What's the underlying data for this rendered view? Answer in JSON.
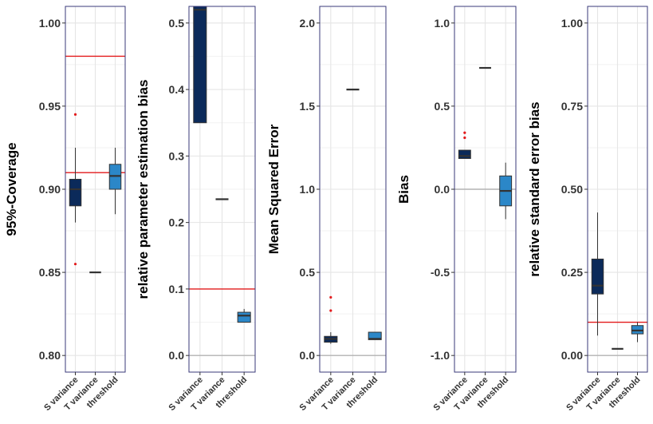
{
  "chart_data": [
    {
      "type": "boxplot",
      "ylabel": "95%-Coverage",
      "ylim": [
        0.79,
        1.01
      ],
      "yticks": [
        0.8,
        0.85,
        0.9,
        0.95,
        1.0
      ],
      "ytick_labels": [
        "0.80",
        "0.85",
        "0.90",
        "0.95",
        "1.00"
      ],
      "categories": [
        "S variance",
        "T variance",
        "threshold"
      ],
      "boxes": [
        {
          "q1": 0.89,
          "median": 0.9,
          "q3": 0.906,
          "whisker_low": 0.88,
          "whisker_high": 0.925,
          "outliers": [
            0.945,
            0.855
          ],
          "color": "#0b2a5a"
        },
        {
          "q1": 0.85,
          "median": 0.85,
          "q3": 0.85,
          "whisker_low": 0.85,
          "whisker_high": 0.85,
          "outliers": [],
          "color": "#0b2a5a"
        },
        {
          "q1": 0.9,
          "median": 0.908,
          "q3": 0.915,
          "whisker_low": 0.885,
          "whisker_high": 0.925,
          "outliers": [],
          "color": "#2b87c8"
        }
      ],
      "reference_lines": [
        {
          "y": 0.98,
          "color": "#e31a1c"
        },
        {
          "y": 0.91,
          "color": "#e31a1c"
        }
      ]
    },
    {
      "type": "boxplot",
      "ylabel": "relative parameter estimation bias",
      "ylim": [
        -0.025,
        0.525
      ],
      "yticks": [
        0,
        0.1,
        0.2,
        0.3,
        0.4,
        0.5
      ],
      "ytick_labels": [
        "0.0",
        "0.1",
        "0.2",
        "0.3",
        "0.4",
        "0.5"
      ],
      "categories": [
        "S variance",
        "T variance",
        "threshold"
      ],
      "boxes": [
        {
          "q1": 0.35,
          "median": 0.52,
          "q3": 0.525,
          "whisker_low": 0.35,
          "whisker_high": 0.525,
          "outliers": [],
          "color": "#0b2a5a"
        },
        {
          "q1": 0.235,
          "median": 0.235,
          "q3": 0.235,
          "whisker_low": 0.235,
          "whisker_high": 0.235,
          "outliers": [],
          "color": "#0b2a5a"
        },
        {
          "q1": 0.05,
          "median": 0.06,
          "q3": 0.065,
          "whisker_low": 0.05,
          "whisker_high": 0.07,
          "outliers": [],
          "color": "#2b87c8"
        }
      ],
      "reference_lines": [
        {
          "y": 0.1,
          "color": "#e31a1c"
        },
        {
          "y": 0,
          "color": "#b3b3b3"
        }
      ]
    },
    {
      "type": "boxplot",
      "ylabel": "Mean Squared Error",
      "ylim": [
        -0.1,
        2.1
      ],
      "yticks": [
        0,
        0.5,
        1.0,
        1.5,
        2.0
      ],
      "ytick_labels": [
        "0.0",
        "0.5",
        "1.0",
        "1.5",
        "2.0"
      ],
      "categories": [
        "S variance",
        "T variance",
        "threshold"
      ],
      "boxes": [
        {
          "q1": 0.08,
          "median": 0.1,
          "q3": 0.115,
          "whisker_low": 0.07,
          "whisker_high": 0.14,
          "outliers": [
            0.35,
            0.27
          ],
          "color": "#0b2a5a"
        },
        {
          "q1": 1.6,
          "median": 1.6,
          "q3": 1.6,
          "whisker_low": 1.6,
          "whisker_high": 1.6,
          "outliers": [],
          "color": "#0b2a5a"
        },
        {
          "q1": 0.095,
          "median": 0.1,
          "q3": 0.14,
          "whisker_low": 0.095,
          "whisker_high": 0.14,
          "outliers": [],
          "color": "#2b87c8"
        }
      ],
      "reference_lines": [
        {
          "y": 0,
          "color": "#b3b3b3"
        }
      ]
    },
    {
      "type": "boxplot",
      "ylabel": "Bias",
      "ylim": [
        -1.1,
        1.1
      ],
      "yticks": [
        -1.0,
        -0.5,
        0,
        0.5,
        1.0
      ],
      "ytick_labels": [
        "-1.0",
        "-0.5",
        "0.0",
        "0.5",
        "1.0"
      ],
      "categories": [
        "S variance",
        "T variance",
        "threshold"
      ],
      "boxes": [
        {
          "q1": 0.185,
          "median": 0.2,
          "q3": 0.235,
          "whisker_low": 0.185,
          "whisker_high": 0.235,
          "outliers": [
            0.34,
            0.31
          ],
          "color": "#0b2a5a"
        },
        {
          "q1": 0.73,
          "median": 0.73,
          "q3": 0.73,
          "whisker_low": 0.73,
          "whisker_high": 0.73,
          "outliers": [],
          "color": "#0b2a5a"
        },
        {
          "q1": -0.1,
          "median": -0.01,
          "q3": 0.08,
          "whisker_low": -0.18,
          "whisker_high": 0.16,
          "outliers": [],
          "color": "#2b87c8"
        }
      ],
      "reference_lines": [
        {
          "y": 0,
          "color": "#b3b3b3"
        }
      ]
    },
    {
      "type": "boxplot",
      "ylabel": "relative standard error bias",
      "ylim": [
        -0.05,
        1.05
      ],
      "yticks": [
        0,
        0.25,
        0.5,
        0.75,
        1.0
      ],
      "ytick_labels": [
        "0.00",
        "0.25",
        "0.50",
        "0.75",
        "1.00"
      ],
      "categories": [
        "S variance",
        "T variance",
        "threshold"
      ],
      "boxes": [
        {
          "q1": 0.185,
          "median": 0.21,
          "q3": 0.29,
          "whisker_low": 0.06,
          "whisker_high": 0.43,
          "outliers": [],
          "color": "#0b2a5a"
        },
        {
          "q1": 0.02,
          "median": 0.02,
          "q3": 0.02,
          "whisker_low": 0.02,
          "whisker_high": 0.02,
          "outliers": [],
          "color": "#0b2a5a"
        },
        {
          "q1": 0.065,
          "median": 0.075,
          "q3": 0.09,
          "whisker_low": 0.04,
          "whisker_high": 0.1,
          "outliers": [],
          "color": "#2b87c8"
        }
      ],
      "reference_lines": [
        {
          "y": 0.1,
          "color": "#e31a1c"
        },
        {
          "y": 0,
          "color": "#b3b3b3"
        }
      ]
    }
  ]
}
